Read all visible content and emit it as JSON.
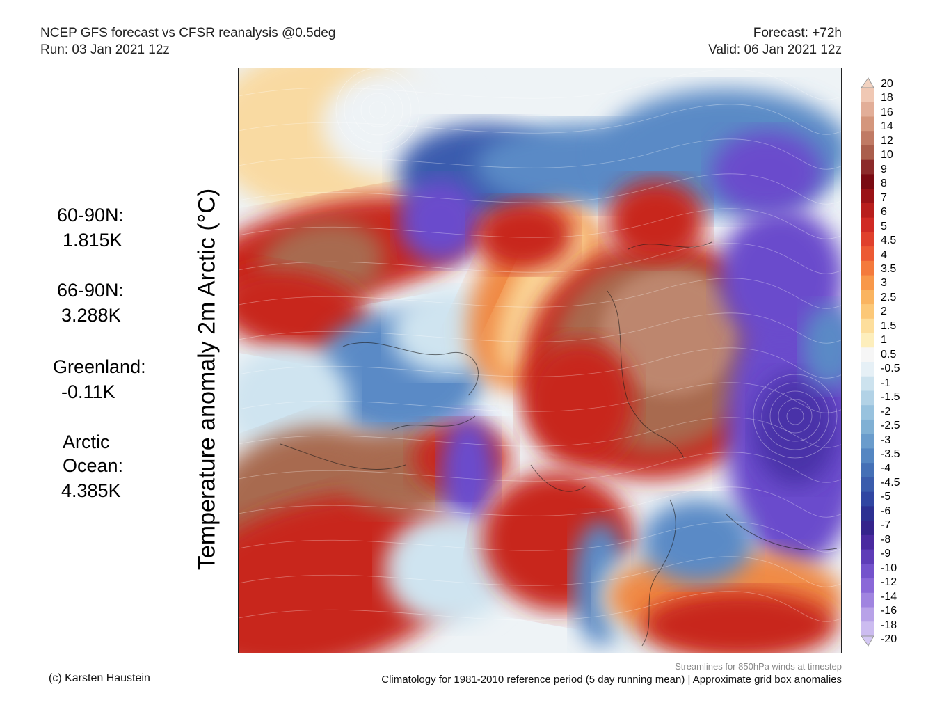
{
  "header": {
    "title": "NCEP GFS forecast vs CFSR reanalysis @0.5deg",
    "run": "Run: 03 Jan 2021 12z",
    "forecast": "Forecast: +72h",
    "valid": "Valid: 06 Jan 2021 12z"
  },
  "y_axis_label": "Temperature anomaly 2m Arctic (°C)",
  "stats": [
    {
      "label": "60-90N:",
      "value": "1.815K"
    },
    {
      "label": "66-90N:",
      "value": "3.288K"
    },
    {
      "label": "Greenland:",
      "value": "-0.11K"
    },
    {
      "label": "Arctic Ocean:",
      "value": "4.385K"
    }
  ],
  "colorbar": {
    "ticks": [
      "20",
      "18",
      "16",
      "14",
      "12",
      "10",
      "9",
      "8",
      "7",
      "6",
      "5",
      "4.5",
      "4",
      "3.5",
      "3",
      "2.5",
      "2",
      "1.5",
      "1",
      "0.5",
      "-0.5",
      "-1",
      "-1.5",
      "-2",
      "-2.5",
      "-3",
      "-3.5",
      "-4",
      "-4.5",
      "-5",
      "-6",
      "-7",
      "-8",
      "-9",
      "-10",
      "-12",
      "-14",
      "-16",
      "-18",
      "-20"
    ],
    "colors": [
      "#f0c8b4",
      "#e2ae98",
      "#d4967c",
      "#c07a64",
      "#aa5e4c",
      "#8c2a2a",
      "#7a0a12",
      "#9a1216",
      "#b81e1c",
      "#d02a24",
      "#e0402c",
      "#ec5a34",
      "#f47a3c",
      "#f8984a",
      "#fab460",
      "#fcc878",
      "#fdde9c",
      "#fdeebc",
      "#f6f6f6",
      "#e6f0f6",
      "#cce2ee",
      "#b2d2e6",
      "#98c2de",
      "#80b0d4",
      "#6a9ccc",
      "#5486c2",
      "#4470b6",
      "#3a5cac",
      "#3046a2",
      "#2c3092",
      "#34248c",
      "#4a2aa0",
      "#5e3cb8",
      "#7452cc",
      "#8a68d8",
      "#a084e0",
      "#b8a2e8",
      "#ccbcf0"
    ],
    "top_arrow_color": "#f2d2c0",
    "bottom_arrow_color": "#d4c8f4"
  },
  "footer": {
    "credit": "(c) Karsten Haustein",
    "streamlines": "Streamlines for 850hPa winds at timestep",
    "climatology": "Climatology for 1981-2010 reference period (5 day running mean) | Approximate grid box anomalies"
  },
  "map_colors": {
    "neutral": "#eef3f6",
    "brown": "#a86a50",
    "brown_light": "#c08a72",
    "red": "#c8261e",
    "red_dark": "#a0141a",
    "orange": "#f08a44",
    "yellow": "#fbd89a",
    "pale_blue": "#cfe4f0",
    "blue": "#5a8ac6",
    "blue_dark": "#3a5cae",
    "purple": "#6a4ccc",
    "purple_dark": "#4a30a8"
  }
}
